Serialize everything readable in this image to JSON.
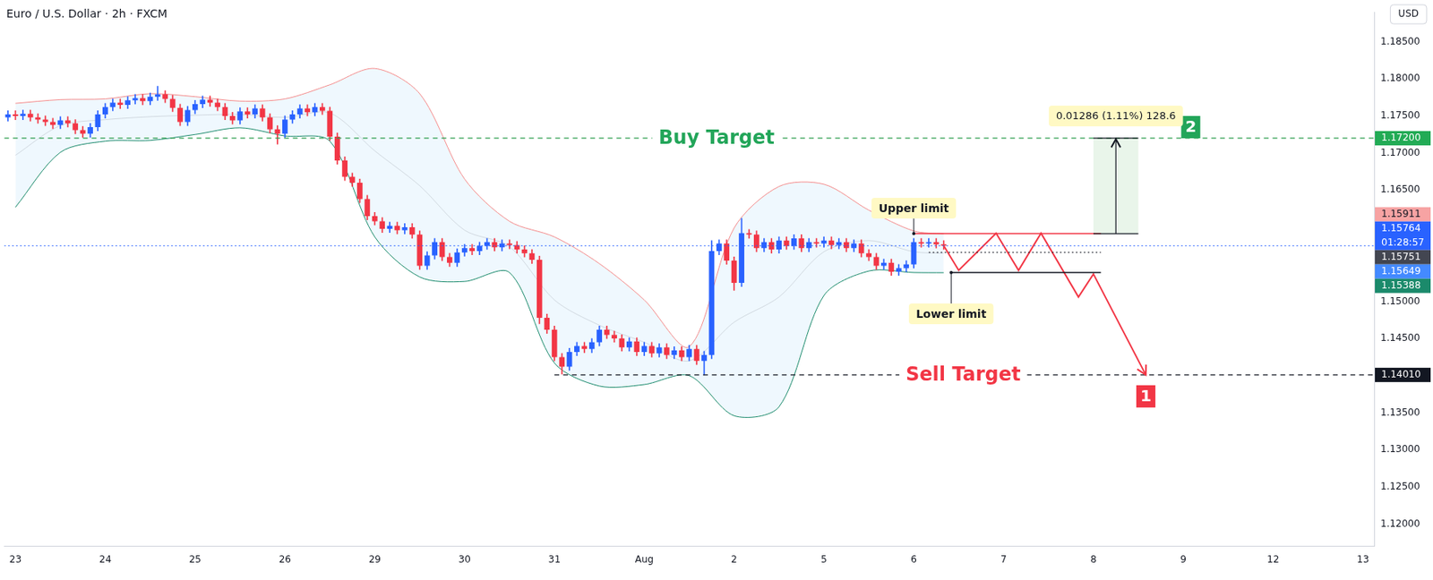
{
  "chart_data": {
    "type": "candlestick",
    "title": "Euro / U.S. Dollar · 2h · FXCM",
    "currency": "USD",
    "grid": false,
    "categories": [
      null,
      "23",
      null,
      null,
      null,
      null,
      null,
      null,
      null,
      null,
      null,
      null,
      null,
      "24",
      null,
      null,
      null,
      null,
      null,
      null,
      null,
      null,
      null,
      null,
      null,
      "25",
      null,
      null,
      null,
      null,
      null,
      null,
      null,
      null,
      null,
      null,
      null,
      "26",
      null,
      null,
      null,
      null,
      null,
      null,
      null,
      null,
      null,
      null,
      null,
      "29",
      null,
      null,
      null,
      null,
      null,
      null,
      null,
      null,
      null,
      null,
      null,
      "30",
      null,
      null,
      null,
      null,
      null,
      null,
      null,
      null,
      null,
      null,
      null,
      "31",
      null,
      null,
      null,
      null,
      null,
      null,
      null,
      null,
      null,
      null,
      null,
      "Aug",
      null,
      null,
      null,
      null,
      null,
      null,
      null,
      null,
      null,
      null,
      null,
      "2",
      null,
      null,
      null,
      null,
      null,
      null,
      null,
      null,
      null,
      null,
      null,
      "5",
      null,
      null,
      null,
      null,
      null,
      null,
      null,
      null,
      null,
      null,
      null,
      "6",
      null,
      null,
      null,
      null,
      null,
      null,
      null,
      null,
      null,
      null,
      null,
      "7",
      null,
      null,
      null,
      null,
      null,
      null,
      null,
      null,
      null,
      null,
      null,
      "8",
      null,
      null,
      null,
      null,
      null,
      null,
      null,
      null,
      null,
      null,
      null,
      "9",
      null,
      null,
      null,
      null,
      null,
      null,
      null,
      null,
      null,
      null,
      null,
      "12",
      null,
      null,
      null,
      null,
      null,
      null,
      null,
      null,
      null,
      null,
      null,
      "13",
      null
    ],
    "open": [
      1.1748,
      1.1752,
      1.175,
      1.1753,
      1.1748,
      1.1745,
      1.1742,
      1.1738,
      1.1744,
      1.174,
      1.1731,
      1.1726,
      1.1735,
      1.1752,
      1.1762,
      1.1768,
      1.1765,
      1.1771,
      1.1774,
      1.177,
      1.1776,
      1.1779,
      1.1773,
      1.1761,
      1.1742,
      1.1758,
      1.1766,
      1.1772,
      1.1768,
      1.1762,
      1.175,
      1.1744,
      1.1756,
      1.1752,
      1.176,
      1.1748,
      1.1732,
      1.1726,
      1.1745,
      1.1752,
      1.176,
      1.1755,
      1.1762,
      1.1757,
      1.1722,
      1.169,
      1.1668,
      1.166,
      1.1638,
      1.1615,
      1.1608,
      1.1598,
      1.1602,
      1.1596,
      1.16,
      1.159,
      1.1548,
      1.1562,
      1.158,
      1.156,
      1.1552,
      1.1566,
      1.1572,
      1.1568,
      1.1575,
      1.158,
      1.1573,
      1.1578,
      1.1576,
      1.157,
      1.1565,
      1.1556,
      1.1478,
      1.1462,
      1.1425,
      1.1412,
      1.1432,
      1.144,
      1.1436,
      1.1445,
      1.1462,
      1.1455,
      1.145,
      1.1438,
      1.1446,
      1.1432,
      1.144,
      1.143,
      1.1438,
      1.1428,
      1.1434,
      1.1425,
      1.1436,
      1.142,
      1.1428,
      1.1568,
      1.1578,
      1.1555,
      1.1525,
      1.1592,
      1.159,
      1.1572,
      1.158,
      1.157,
      1.1582,
      1.1575,
      1.1585,
      1.1572,
      1.158,
      1.1578,
      1.1582,
      1.1576,
      1.158,
      1.1572,
      1.1578,
      1.1565,
      1.156,
      1.1548,
      1.1552,
      1.154,
      1.1545,
      1.155,
      1.158,
      1.1578,
      1.158,
      1.1577,
      null,
      null,
      null,
      null,
      null,
      null,
      null,
      null,
      null,
      null,
      null,
      null,
      null,
      null,
      null,
      null,
      null,
      null,
      null,
      null,
      null,
      null,
      null,
      null,
      null,
      null,
      null,
      null,
      null,
      null,
      null,
      null,
      null,
      null,
      null,
      null,
      null,
      null,
      null,
      null,
      null,
      null,
      null,
      null,
      null,
      null,
      null,
      null,
      null,
      null,
      null,
      null,
      null,
      null,
      null,
      null,
      null
    ],
    "high": [
      1.1757,
      1.1757,
      1.1758,
      1.1758,
      1.1753,
      1.175,
      1.1747,
      1.1749,
      1.1749,
      1.1745,
      1.1736,
      1.174,
      1.1757,
      1.1767,
      1.1773,
      1.1773,
      1.1776,
      1.1779,
      1.1779,
      1.1781,
      1.179,
      1.1784,
      1.1778,
      1.1766,
      1.1763,
      1.1771,
      1.1777,
      1.1777,
      1.1773,
      1.1767,
      1.1755,
      1.1761,
      1.1761,
      1.1765,
      1.1765,
      1.1753,
      1.1737,
      1.175,
      1.1757,
      1.1765,
      1.1765,
      1.1767,
      1.1767,
      1.1762,
      1.1727,
      1.1695,
      1.1673,
      1.1665,
      1.1643,
      1.162,
      1.1613,
      1.1607,
      1.1607,
      1.1605,
      1.1605,
      1.1595,
      1.1567,
      1.1585,
      1.1585,
      1.1565,
      1.1571,
      1.1577,
      1.1577,
      1.158,
      1.1585,
      1.1585,
      1.1583,
      1.1583,
      1.1581,
      1.1575,
      1.157,
      1.1561,
      1.1483,
      1.1467,
      1.143,
      1.1437,
      1.1445,
      1.1445,
      1.145,
      1.1467,
      1.1467,
      1.146,
      1.1455,
      1.1451,
      1.1451,
      1.1445,
      1.1445,
      1.1443,
      1.1443,
      1.1439,
      1.1439,
      1.1441,
      1.1441,
      1.1433,
      1.1582,
      1.1583,
      1.1583,
      1.156,
      1.1612,
      1.1597,
      1.1595,
      1.1585,
      1.1585,
      1.1587,
      1.1587,
      1.159,
      1.159,
      1.1585,
      1.1585,
      1.1587,
      1.1587,
      1.1585,
      1.1585,
      1.1583,
      1.1583,
      1.157,
      1.1565,
      1.1557,
      1.1557,
      1.155,
      1.1555,
      1.1585,
      1.1585,
      1.1585,
      1.1585,
      1.1582,
      null,
      null,
      null,
      null,
      null,
      null,
      null,
      null,
      null,
      null,
      null,
      null,
      null,
      null,
      null,
      null,
      null,
      null,
      null,
      null,
      null,
      null,
      null,
      null,
      null,
      null,
      null,
      null,
      null,
      null,
      null,
      null,
      null,
      null,
      null,
      null,
      null,
      null,
      null,
      null,
      null,
      null,
      null,
      null,
      null,
      null,
      null,
      null,
      null,
      null,
      null,
      null,
      null,
      null,
      null,
      null,
      null
    ],
    "low": [
      1.1743,
      1.1745,
      1.1745,
      1.1743,
      1.174,
      1.1737,
      1.1733,
      1.1733,
      1.1735,
      1.1726,
      1.1721,
      1.1721,
      1.173,
      1.1747,
      1.1757,
      1.176,
      1.176,
      1.1766,
      1.1765,
      1.1765,
      1.1771,
      1.1768,
      1.1756,
      1.1737,
      1.1737,
      1.1753,
      1.1761,
      1.1763,
      1.1757,
      1.1745,
      1.1739,
      1.1739,
      1.1747,
      1.1747,
      1.1743,
      1.1727,
      1.1712,
      1.1721,
      1.174,
      1.1747,
      1.175,
      1.175,
      1.1752,
      1.1717,
      1.1685,
      1.1663,
      1.1655,
      1.1633,
      1.161,
      1.1603,
      1.1593,
      1.1593,
      1.1591,
      1.1591,
      1.1585,
      1.1543,
      1.1543,
      1.1557,
      1.1555,
      1.1547,
      1.1547,
      1.1561,
      1.1563,
      1.1563,
      1.157,
      1.1568,
      1.1568,
      1.1571,
      1.1565,
      1.156,
      1.1551,
      1.147,
      1.1457,
      1.142,
      1.1402,
      1.1407,
      1.1427,
      1.1431,
      1.1431,
      1.144,
      1.145,
      1.1445,
      1.1433,
      1.1433,
      1.1427,
      1.1427,
      1.1425,
      1.1425,
      1.1423,
      1.1423,
      1.142,
      1.142,
      1.1415,
      1.1401,
      1.1423,
      1.1563,
      1.155,
      1.1515,
      1.152,
      1.1585,
      1.1567,
      1.1567,
      1.1565,
      1.1565,
      1.157,
      1.157,
      1.1567,
      1.1567,
      1.1573,
      1.1573,
      1.1571,
      1.1571,
      1.1567,
      1.1567,
      1.156,
      1.1555,
      1.1543,
      1.1543,
      1.1535,
      1.1535,
      1.154,
      1.1545,
      1.1573,
      1.1573,
      1.1572,
      1.157,
      null,
      null,
      null,
      null,
      null,
      null,
      null,
      null,
      null,
      null,
      null,
      null,
      null,
      null,
      null,
      null,
      null,
      null,
      null,
      null,
      null,
      null,
      null,
      null,
      null,
      null,
      null,
      null,
      null,
      null,
      null,
      null,
      null,
      null,
      null,
      null,
      null,
      null,
      null,
      null,
      null,
      null,
      null,
      null,
      null,
      null,
      null,
      null,
      null,
      null,
      null,
      null,
      null,
      null,
      null,
      null,
      null
    ],
    "close": [
      1.1752,
      1.175,
      1.1753,
      1.1748,
      1.1745,
      1.1742,
      1.1738,
      1.1744,
      1.174,
      1.1731,
      1.1726,
      1.1735,
      1.1752,
      1.1762,
      1.1768,
      1.1765,
      1.1771,
      1.1774,
      1.177,
      1.1776,
      1.1779,
      1.1773,
      1.1761,
      1.1742,
      1.1758,
      1.1766,
      1.1772,
      1.1768,
      1.1762,
      1.175,
      1.1744,
      1.1756,
      1.1752,
      1.176,
      1.1748,
      1.1732,
      1.1726,
      1.1745,
      1.1752,
      1.176,
      1.1755,
      1.1762,
      1.1757,
      1.1722,
      1.169,
      1.1668,
      1.166,
      1.1638,
      1.1615,
      1.1608,
      1.1598,
      1.1602,
      1.1596,
      1.16,
      1.159,
      1.1548,
      1.1562,
      1.158,
      1.156,
      1.1552,
      1.1566,
      1.1572,
      1.1568,
      1.1575,
      1.158,
      1.1573,
      1.1578,
      1.1576,
      1.157,
      1.1565,
      1.1556,
      1.1478,
      1.1462,
      1.1425,
      1.1412,
      1.1432,
      1.144,
      1.1436,
      1.1445,
      1.1462,
      1.1455,
      1.145,
      1.1438,
      1.1446,
      1.1432,
      1.144,
      1.143,
      1.1438,
      1.1428,
      1.1434,
      1.1425,
      1.1436,
      1.142,
      1.1428,
      1.1568,
      1.1578,
      1.1555,
      1.1525,
      1.1592,
      1.159,
      1.1572,
      1.158,
      1.157,
      1.1582,
      1.1575,
      1.1585,
      1.1572,
      1.158,
      1.1578,
      1.1582,
      1.1576,
      1.158,
      1.1572,
      1.1578,
      1.1565,
      1.156,
      1.1548,
      1.1552,
      1.154,
      1.1545,
      1.155,
      1.158,
      1.1578,
      1.158,
      1.1577,
      1.15751,
      null,
      null,
      null,
      null,
      null,
      null,
      null,
      null,
      null,
      null,
      null,
      null,
      null,
      null,
      null,
      null,
      null,
      null,
      null,
      null,
      null,
      null,
      null,
      null,
      null,
      null,
      null,
      null,
      null,
      null,
      null,
      null,
      null,
      null,
      null,
      null,
      null,
      null,
      null,
      null,
      null,
      null,
      null,
      null,
      null,
      null,
      null,
      null,
      null,
      null,
      null,
      null,
      null,
      null,
      null,
      null,
      null
    ],
    "bands": {
      "slots": [
        1,
        7,
        13,
        19,
        25,
        31,
        37,
        43,
        49,
        55,
        61,
        67,
        73,
        79,
        85,
        91,
        97,
        103,
        109,
        115,
        121,
        125
      ],
      "upper": [
        1.1767,
        1.1772,
        1.1773,
        1.178,
        1.1776,
        1.177,
        1.1773,
        1.1792,
        1.1814,
        1.178,
        1.1665,
        1.1608,
        1.1587,
        1.1551,
        1.1502,
        1.1439,
        1.1599,
        1.1655,
        1.1658,
        1.1623,
        1.1595,
        1.15911
      ],
      "middle": [
        1.1697,
        1.1737,
        1.1745,
        1.1749,
        1.1751,
        1.1752,
        1.1748,
        1.1754,
        1.1703,
        1.1656,
        1.1596,
        1.1574,
        1.1502,
        1.1468,
        1.1445,
        1.142,
        1.1472,
        1.1506,
        1.1567,
        1.1582,
        1.1567,
        1.15649
      ],
      "lower": [
        1.1627,
        1.1701,
        1.1716,
        1.1717,
        1.1725,
        1.1734,
        1.1723,
        1.1716,
        1.1587,
        1.1533,
        1.1527,
        1.1539,
        1.1417,
        1.1386,
        1.1388,
        1.14,
        1.1346,
        1.1358,
        1.1508,
        1.1541,
        1.1539,
        1.15388
      ]
    },
    "ylim": [
      1.117,
      1.189
    ],
    "yticks": [
      {
        "value": 1.12,
        "label": "1.12000"
      },
      {
        "value": 1.125,
        "label": "1.12500"
      },
      {
        "value": 1.13,
        "label": "1.13000"
      },
      {
        "value": 1.135,
        "label": "1.13500"
      },
      {
        "value": 1.145,
        "label": "1.14500"
      },
      {
        "value": 1.15,
        "label": "1.15000"
      },
      {
        "value": 1.165,
        "label": "1.16500"
      },
      {
        "value": 1.17,
        "label": "1.17000"
      },
      {
        "value": 1.175,
        "label": "1.17500"
      },
      {
        "value": 1.18,
        "label": "1.18000"
      },
      {
        "value": 1.185,
        "label": "1.18500"
      }
    ],
    "levels": [
      {
        "label": "Buy Target",
        "value": 1.172,
        "slots": [
          0,
          182
        ],
        "color": "#22a559",
        "line_color": "#2e9e4f",
        "line_style": "dashed",
        "badge": "2",
        "badge_slot": 158
      },
      {
        "label": "Sell Target",
        "value": 1.1401,
        "slots": [
          73,
          182
        ],
        "color": "#f23645",
        "line_color": "#131722",
        "line_style": "dashed",
        "badge": "1",
        "badge_slot": 152
      }
    ],
    "limits": [
      {
        "label": "Upper limit",
        "value": 1.15914,
        "slots": [
          121,
          146
        ],
        "color": "#f23645",
        "side": "above"
      },
      {
        "label": "Lower limit",
        "value": 1.1539,
        "slots": [
          126,
          146
        ],
        "color": "#131722",
        "side": "below"
      }
    ],
    "guide": {
      "value": 1.1566,
      "slots": [
        123,
        146
      ],
      "line_style": "dotted"
    },
    "measure": {
      "from": 1.15914,
      "to": 1.172,
      "slots": [
        145,
        151
      ],
      "label": "0.01286 (1.11%) 128.6"
    },
    "projection": {
      "slots": [
        125,
        127,
        132,
        135,
        138,
        143,
        145,
        152
      ],
      "values": [
        1.15751,
        1.1542,
        1.1592,
        1.1542,
        1.1592,
        1.1506,
        1.1537,
        1.1401
      ],
      "color": "#f23645"
    },
    "price_tags": [
      {
        "value": 1.172,
        "label": "1.17200",
        "color": "#22ab55"
      },
      {
        "value": 1.15911,
        "label": "1.15911",
        "color": "#f7a3a3"
      },
      {
        "value": 1.15764,
        "label": "1.15764",
        "sub": "01:28:57",
        "color": "#2962ff"
      },
      {
        "value": 1.15751,
        "label": "1.15751",
        "color": "#434651",
        "line_style": "dotted"
      },
      {
        "value": 1.15649,
        "label": "1.15649",
        "color": "#448aff"
      },
      {
        "value": 1.15388,
        "label": "1.15388",
        "color": "#1b8a6b"
      },
      {
        "value": 1.1401,
        "label": "1.14010",
        "color": "#131722"
      }
    ]
  }
}
